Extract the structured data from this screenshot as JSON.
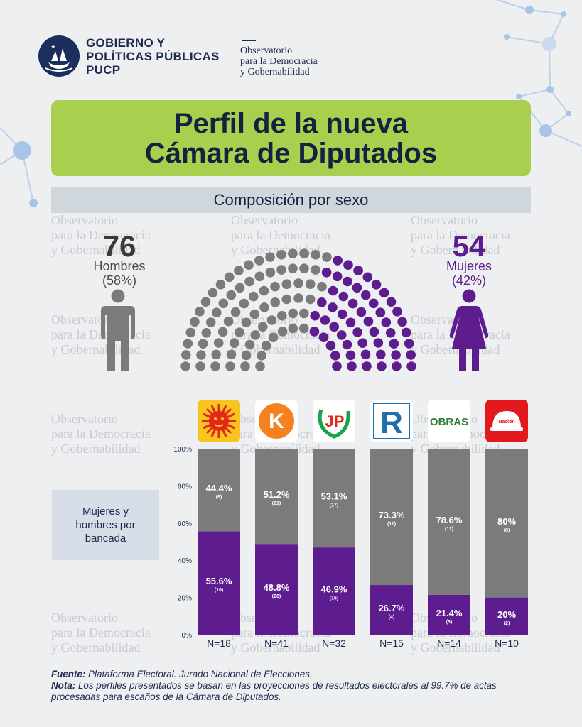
{
  "header": {
    "org_lines": [
      "GOBIERNO Y",
      "POLÍTICAS PÚBLICAS",
      "PUCP"
    ],
    "observatory_lines": [
      "Observatorio",
      "para la Democracia",
      "y Gobernabilidad"
    ]
  },
  "title_lines": [
    "Perfil de la nueva",
    "Cámara de Diputados"
  ],
  "section_title": "Composición por sexo",
  "watermark_lines": [
    "Observatorio",
    "para la Democracia",
    "y Gobernabilidad"
  ],
  "men": {
    "count": "76",
    "label": "Hombres",
    "percent": "(58%)"
  },
  "women": {
    "count": "54",
    "label": "Mujeres",
    "percent": "(42%)"
  },
  "icons": {
    "men": "man-icon",
    "women": "woman-icon"
  },
  "legend_lines": [
    "Mujeres y",
    "hombres por",
    "bancada"
  ],
  "colors": {
    "men": "#7b7b7b",
    "women": "#5d1d8e",
    "title_green": "#a8cf4e",
    "navy": "#1c2a4e"
  },
  "parties": [
    {
      "logo": "sun-logo"
    },
    {
      "logo": "k-logo",
      "text": "K"
    },
    {
      "logo": "jp-logo",
      "text": "JP"
    },
    {
      "logo": "r-logo",
      "text": "R"
    },
    {
      "logo": "obras-logo",
      "text": "OBRAS"
    },
    {
      "logo": "helmet-logo",
      "text": "Nación"
    }
  ],
  "chart_data": [
    {
      "type": "parliament",
      "total_seats": 130,
      "series": [
        {
          "name": "Hombres",
          "value": 76,
          "percent": 58
        },
        {
          "name": "Mujeres",
          "value": 54,
          "percent": 42
        }
      ]
    },
    {
      "type": "bar",
      "stacked": true,
      "categories": [
        "N=18",
        "N=41",
        "N=32",
        "N=15",
        "N=14",
        "N=10"
      ],
      "series": [
        {
          "color": "#5d1d8e",
          "values": [
            55.6,
            48.8,
            46.9,
            26.7,
            21.4,
            20.0
          ],
          "labels": [
            "55.6%",
            "48.8%",
            "46.9%",
            "26.7%",
            "21.4%",
            "20%"
          ],
          "counts": [
            "(10)",
            "(20)",
            "(15)",
            "(4)",
            "(3)",
            "(2)"
          ]
        },
        {
          "color": "#7b7b7b",
          "values": [
            44.4,
            51.2,
            53.1,
            73.3,
            78.6,
            80.0
          ],
          "labels": [
            "44.4%",
            "51.2%",
            "53.1%",
            "73.3%",
            "78.6%",
            "80%"
          ],
          "counts": [
            "(8)",
            "(21)",
            "(17)",
            "(11)",
            "(11)",
            "(8)"
          ]
        }
      ],
      "ylim": [
        0,
        100
      ],
      "yticks": [
        "0%",
        "20%",
        "40%",
        "60%",
        "80%",
        "100%"
      ]
    }
  ],
  "footer": {
    "source_label": "Fuente:",
    "source_text": "Plataforma Electoral. Jurado Nacional de Elecciones.",
    "note_label": "Nota:",
    "note_text": "Los perfiles presentados se basan en las proyecciones de resultados electorales al 99.7% de actas procesadas para escaños de la Cámara de Diputados."
  }
}
